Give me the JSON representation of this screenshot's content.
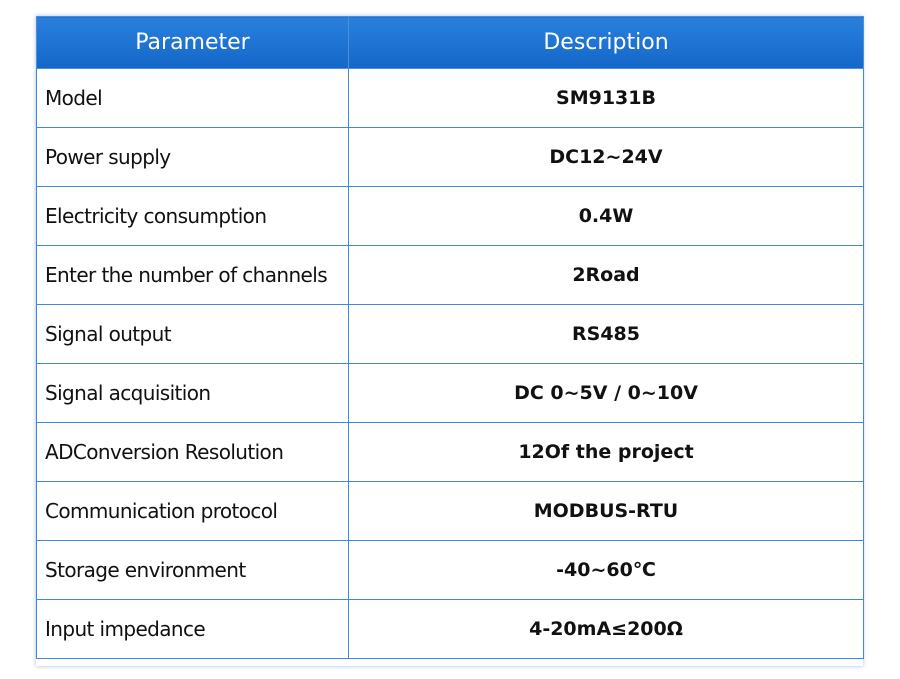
{
  "table": {
    "header": [
      "Parameter",
      "Description"
    ],
    "rows": [
      [
        "Model",
        "SM9131B"
      ],
      [
        "Power supply",
        "DC12~24V"
      ],
      [
        "Electricity consumption",
        "0.4W"
      ],
      [
        "Enter the number of channels",
        "2Road"
      ],
      [
        "Signal output",
        "RS485"
      ],
      [
        "Signal acquisition",
        "DC 0~5V / 0~10V"
      ],
      [
        "ADConversion Resolution",
        "12Of the project"
      ],
      [
        "Communication protocol",
        "MODBUS-RTU"
      ],
      [
        "Storage environment",
        "-40~60℃"
      ],
      [
        "Input impedance",
        "4-20mA≤200Ω"
      ]
    ]
  }
}
